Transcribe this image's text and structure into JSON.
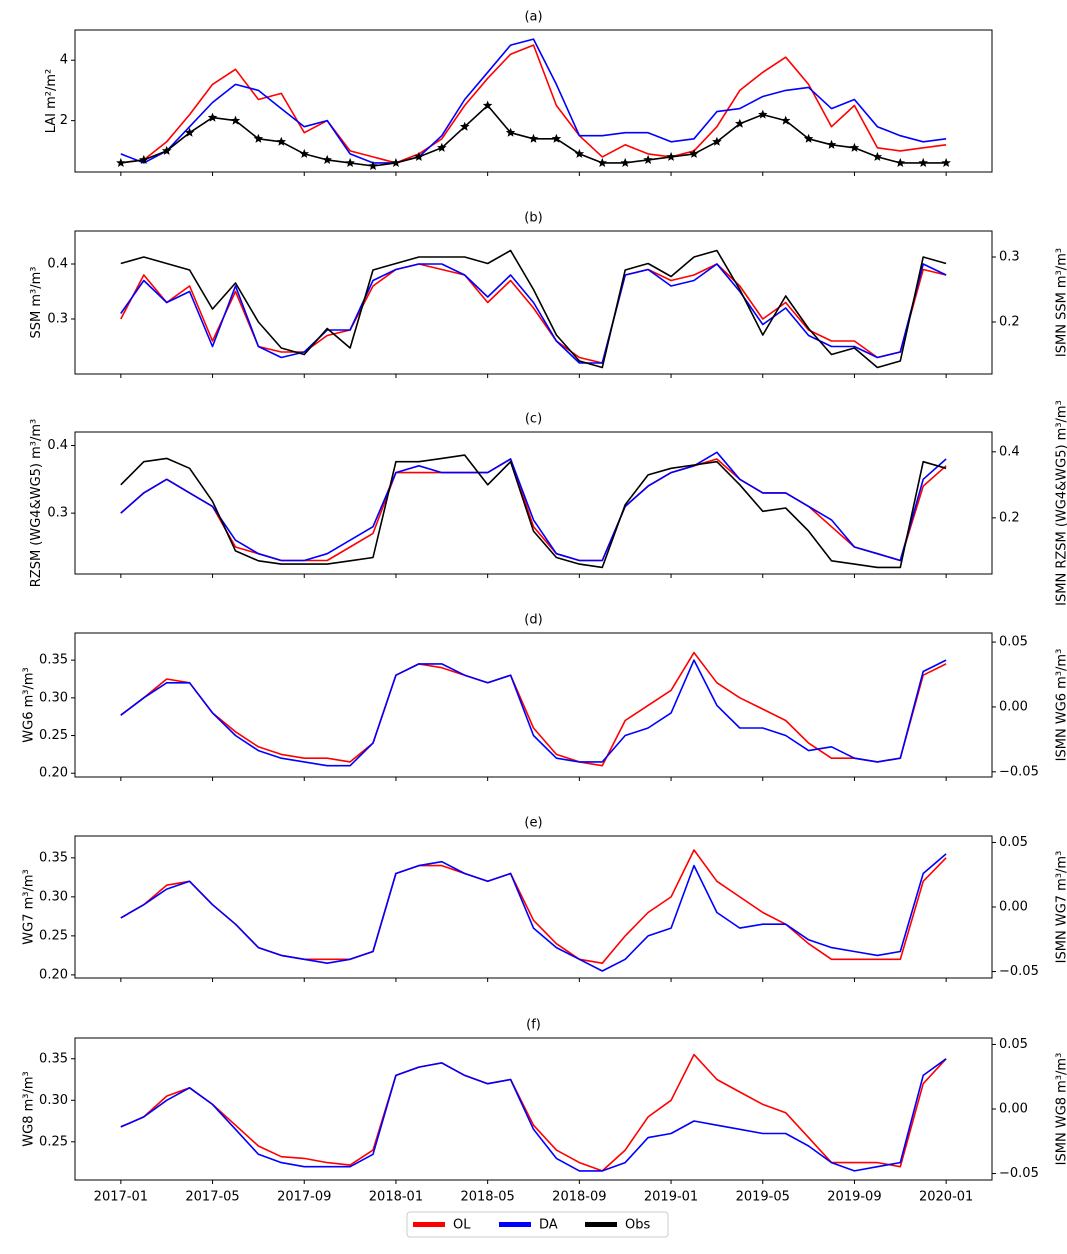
{
  "chart_data": [
    {
      "type": "line",
      "title": "(a)",
      "ylabel": "LAI m²/m²",
      "x": [
        "2017-01",
        "2017-02",
        "2017-03",
        "2017-04",
        "2017-05",
        "2017-06",
        "2017-07",
        "2017-08",
        "2017-09",
        "2017-10",
        "2017-11",
        "2017-12",
        "2018-01",
        "2018-02",
        "2018-03",
        "2018-04",
        "2018-05",
        "2018-06",
        "2018-07",
        "2018-08",
        "2018-09",
        "2018-10",
        "2018-11",
        "2018-12",
        "2019-01",
        "2019-02",
        "2019-03",
        "2019-04",
        "2019-05",
        "2019-06",
        "2019-07",
        "2019-08",
        "2019-09",
        "2019-10",
        "2019-11",
        "2019-12",
        "2020-01"
      ],
      "xlim": [
        "2016-11",
        "2020-03"
      ],
      "ylim": [
        0.3,
        5.0
      ],
      "yticks": [
        2,
        4
      ],
      "series": [
        {
          "name": "OL",
          "color": "#ff0000",
          "values": [
            0.6,
            0.7,
            1.3,
            2.2,
            3.2,
            3.7,
            2.7,
            2.9,
            1.6,
            2.0,
            1.0,
            0.8,
            0.6,
            0.9,
            1.4,
            2.5,
            3.4,
            4.2,
            4.5,
            2.5,
            1.5,
            0.8,
            1.2,
            0.9,
            0.8,
            1.0,
            1.8,
            3.0,
            3.6,
            4.1,
            3.2,
            1.8,
            2.5,
            1.1,
            1.0,
            1.1,
            1.2
          ]
        },
        {
          "name": "DA",
          "color": "#0000ff",
          "values": [
            0.9,
            0.6,
            1.0,
            1.8,
            2.6,
            3.2,
            3.0,
            2.4,
            1.8,
            2.0,
            0.9,
            0.6,
            0.6,
            0.8,
            1.5,
            2.7,
            3.6,
            4.5,
            4.7,
            3.2,
            1.5,
            1.5,
            1.6,
            1.6,
            1.3,
            1.4,
            2.3,
            2.4,
            2.8,
            3.0,
            3.1,
            2.4,
            2.7,
            1.8,
            1.5,
            1.3,
            1.4
          ]
        },
        {
          "name": "Obs",
          "color": "#000000",
          "marker": "star",
          "values": [
            0.6,
            0.7,
            1.0,
            1.6,
            2.1,
            2.0,
            1.4,
            1.3,
            0.9,
            0.7,
            0.6,
            0.5,
            0.6,
            0.8,
            1.1,
            1.8,
            2.5,
            1.6,
            1.4,
            1.4,
            0.9,
            0.6,
            0.6,
            0.7,
            0.8,
            0.9,
            1.3,
            1.9,
            2.2,
            2.0,
            1.4,
            1.2,
            1.1,
            0.8,
            0.6,
            0.6,
            0.6
          ]
        }
      ]
    },
    {
      "type": "line",
      "title": "(b)",
      "ylabel": "SSM m³/m³",
      "y2label": "ISMN SSM m³/m³",
      "x": [
        "2017-01",
        "2017-02",
        "2017-03",
        "2017-04",
        "2017-05",
        "2017-06",
        "2017-07",
        "2017-08",
        "2017-09",
        "2017-10",
        "2017-11",
        "2017-12",
        "2018-01",
        "2018-02",
        "2018-03",
        "2018-04",
        "2018-05",
        "2018-06",
        "2018-07",
        "2018-08",
        "2018-09",
        "2018-10",
        "2018-11",
        "2018-12",
        "2019-01",
        "2019-02",
        "2019-03",
        "2019-04",
        "2019-05",
        "2019-06",
        "2019-07",
        "2019-08",
        "2019-09",
        "2019-10",
        "2019-11",
        "2019-12",
        "2020-01"
      ],
      "xlim": [
        "2016-11",
        "2020-03"
      ],
      "ylim": [
        0.2,
        0.46
      ],
      "yticks": [
        0.3,
        0.4
      ],
      "y2lim": [
        0.12,
        0.34
      ],
      "y2ticks": [
        0.2,
        0.3
      ],
      "series": [
        {
          "name": "OL",
          "color": "#ff0000",
          "values": [
            0.3,
            0.38,
            0.33,
            0.36,
            0.26,
            0.35,
            0.25,
            0.24,
            0.24,
            0.27,
            0.28,
            0.36,
            0.39,
            0.4,
            0.39,
            0.38,
            0.33,
            0.37,
            0.32,
            0.26,
            0.23,
            0.22,
            0.38,
            0.39,
            0.37,
            0.38,
            0.4,
            0.36,
            0.3,
            0.33,
            0.28,
            0.26,
            0.26,
            0.23,
            0.24,
            0.39,
            0.38
          ]
        },
        {
          "name": "DA",
          "color": "#0000ff",
          "values": [
            0.31,
            0.37,
            0.33,
            0.35,
            0.25,
            0.36,
            0.25,
            0.23,
            0.24,
            0.28,
            0.28,
            0.37,
            0.39,
            0.4,
            0.4,
            0.38,
            0.34,
            0.38,
            0.33,
            0.26,
            0.22,
            0.22,
            0.38,
            0.39,
            0.36,
            0.37,
            0.4,
            0.35,
            0.29,
            0.32,
            0.27,
            0.25,
            0.25,
            0.23,
            0.24,
            0.4,
            0.38
          ]
        },
        {
          "name": "Obs",
          "color": "#000000",
          "axis": "y2",
          "values": [
            0.29,
            0.3,
            0.29,
            0.28,
            0.22,
            0.26,
            0.2,
            0.16,
            0.15,
            0.19,
            0.16,
            0.28,
            0.29,
            0.3,
            0.3,
            0.3,
            0.29,
            0.31,
            0.25,
            0.18,
            0.14,
            0.13,
            0.28,
            0.29,
            0.27,
            0.3,
            0.31,
            0.25,
            0.18,
            0.24,
            0.19,
            0.15,
            0.16,
            0.13,
            0.14,
            0.3,
            0.29
          ]
        }
      ]
    },
    {
      "type": "line",
      "title": "(c)",
      "ylabel": "RZSM (WG4&WG5) m³/m³",
      "y2label": "ISMN RZSM (WG4&WG5) m³/m³",
      "x": [
        "2017-01",
        "2017-02",
        "2017-03",
        "2017-04",
        "2017-05",
        "2017-06",
        "2017-07",
        "2017-08",
        "2017-09",
        "2017-10",
        "2017-11",
        "2017-12",
        "2018-01",
        "2018-02",
        "2018-03",
        "2018-04",
        "2018-05",
        "2018-06",
        "2018-07",
        "2018-08",
        "2018-09",
        "2018-10",
        "2018-11",
        "2018-12",
        "2019-01",
        "2019-02",
        "2019-03",
        "2019-04",
        "2019-05",
        "2019-06",
        "2019-07",
        "2019-08",
        "2019-09",
        "2019-10",
        "2019-11",
        "2019-12",
        "2020-01"
      ],
      "xlim": [
        "2016-11",
        "2020-03"
      ],
      "ylim": [
        0.21,
        0.42
      ],
      "yticks": [
        0.3,
        0.4
      ],
      "y2lim": [
        0.03,
        0.46
      ],
      "y2ticks": [
        0.2,
        0.4
      ],
      "series": [
        {
          "name": "OL",
          "color": "#ff0000",
          "values": [
            0.3,
            0.33,
            0.35,
            0.33,
            0.31,
            0.25,
            0.24,
            0.23,
            0.23,
            0.23,
            0.25,
            0.27,
            0.36,
            0.36,
            0.36,
            0.36,
            0.36,
            0.38,
            0.28,
            0.24,
            0.23,
            0.23,
            0.31,
            0.34,
            0.36,
            0.37,
            0.38,
            0.35,
            0.33,
            0.33,
            0.31,
            0.28,
            0.25,
            0.24,
            0.23,
            0.34,
            0.37
          ]
        },
        {
          "name": "DA",
          "color": "#0000ff",
          "values": [
            0.3,
            0.33,
            0.35,
            0.33,
            0.31,
            0.26,
            0.24,
            0.23,
            0.23,
            0.24,
            0.26,
            0.28,
            0.36,
            0.37,
            0.36,
            0.36,
            0.36,
            0.38,
            0.29,
            0.24,
            0.23,
            0.23,
            0.31,
            0.34,
            0.36,
            0.37,
            0.39,
            0.35,
            0.33,
            0.33,
            0.31,
            0.29,
            0.25,
            0.24,
            0.23,
            0.35,
            0.38
          ]
        },
        {
          "name": "Obs",
          "color": "#000000",
          "axis": "y2",
          "values": [
            0.3,
            0.37,
            0.38,
            0.35,
            0.25,
            0.1,
            0.07,
            0.06,
            0.06,
            0.06,
            0.07,
            0.08,
            0.37,
            0.37,
            0.38,
            0.39,
            0.3,
            0.37,
            0.16,
            0.08,
            0.06,
            0.05,
            0.24,
            0.33,
            0.35,
            0.36,
            0.37,
            0.3,
            0.22,
            0.23,
            0.16,
            0.07,
            0.06,
            0.05,
            0.05,
            0.37,
            0.35
          ]
        }
      ]
    },
    {
      "type": "line",
      "title": "(d)",
      "ylabel": "WG6 m³/m³",
      "y2label": "ISMN WG6 m³/m³",
      "x": [
        "2017-01",
        "2017-02",
        "2017-03",
        "2017-04",
        "2017-05",
        "2017-06",
        "2017-07",
        "2017-08",
        "2017-09",
        "2017-10",
        "2017-11",
        "2017-12",
        "2018-01",
        "2018-02",
        "2018-03",
        "2018-04",
        "2018-05",
        "2018-06",
        "2018-07",
        "2018-08",
        "2018-09",
        "2018-10",
        "2018-11",
        "2018-12",
        "2019-01",
        "2019-02",
        "2019-03",
        "2019-04",
        "2019-05",
        "2019-06",
        "2019-07",
        "2019-08",
        "2019-09",
        "2019-10",
        "2019-11",
        "2019-12",
        "2020-01"
      ],
      "xlim": [
        "2016-11",
        "2020-03"
      ],
      "ylim": [
        0.195,
        0.386
      ],
      "yticks": [
        {
          "value": 0.2,
          "label": "0.20"
        },
        0.25,
        {
          "value": 0.3,
          "label": "0.30"
        },
        0.35
      ],
      "y2lim": [
        -0.054,
        0.057
      ],
      "y2ticks": [
        {
          "value": -0.05,
          "label": "−0.05"
        },
        {
          "value": 0,
          "label": "0.00"
        },
        0.05
      ],
      "series": [
        {
          "name": "OL",
          "color": "#ff0000",
          "values": [
            0.277,
            0.3,
            0.325,
            0.32,
            0.28,
            0.255,
            0.235,
            0.225,
            0.22,
            0.22,
            0.215,
            0.24,
            0.33,
            0.345,
            0.34,
            0.33,
            0.32,
            0.33,
            0.26,
            0.225,
            0.215,
            0.21,
            0.27,
            0.29,
            0.31,
            0.36,
            0.32,
            0.3,
            0.285,
            0.27,
            0.24,
            0.22,
            0.22,
            0.215,
            0.22,
            0.33,
            0.345
          ]
        },
        {
          "name": "DA",
          "color": "#0000ff",
          "values": [
            0.277,
            0.3,
            0.32,
            0.32,
            0.28,
            0.25,
            0.23,
            0.22,
            0.215,
            0.21,
            0.21,
            0.24,
            0.33,
            0.345,
            0.345,
            0.33,
            0.32,
            0.33,
            0.25,
            0.22,
            0.215,
            0.215,
            0.25,
            0.26,
            0.28,
            0.35,
            0.29,
            0.26,
            0.26,
            0.25,
            0.23,
            0.235,
            0.22,
            0.215,
            0.22,
            0.335,
            0.35
          ]
        }
      ]
    },
    {
      "type": "line",
      "title": "(e)",
      "ylabel": "WG7 m³/m³",
      "y2label": "ISMN WG7 m³/m³",
      "x": [
        "2017-01",
        "2017-02",
        "2017-03",
        "2017-04",
        "2017-05",
        "2017-06",
        "2017-07",
        "2017-08",
        "2017-09",
        "2017-10",
        "2017-11",
        "2017-12",
        "2018-01",
        "2018-02",
        "2018-03",
        "2018-04",
        "2018-05",
        "2018-06",
        "2018-07",
        "2018-08",
        "2018-09",
        "2018-10",
        "2018-11",
        "2018-12",
        "2019-01",
        "2019-02",
        "2019-03",
        "2019-04",
        "2019-05",
        "2019-06",
        "2019-07",
        "2019-08",
        "2019-09",
        "2019-10",
        "2019-11",
        "2019-12",
        "2020-01"
      ],
      "xlim": [
        "2016-11",
        "2020-03"
      ],
      "ylim": [
        0.196,
        0.378
      ],
      "yticks": [
        {
          "value": 0.2,
          "label": "0.20"
        },
        0.25,
        {
          "value": 0.3,
          "label": "0.30"
        },
        0.35
      ],
      "y2lim": [
        -0.055,
        0.055
      ],
      "y2ticks": [
        {
          "value": -0.05,
          "label": "−0.05"
        },
        {
          "value": 0,
          "label": "0.00"
        },
        0.05
      ],
      "series": [
        {
          "name": "OL",
          "color": "#ff0000",
          "values": [
            0.273,
            0.29,
            0.315,
            0.32,
            0.29,
            0.265,
            0.235,
            0.225,
            0.22,
            0.22,
            0.22,
            0.23,
            0.33,
            0.34,
            0.34,
            0.33,
            0.32,
            0.33,
            0.27,
            0.24,
            0.22,
            0.215,
            0.25,
            0.28,
            0.3,
            0.36,
            0.32,
            0.3,
            0.28,
            0.265,
            0.24,
            0.22,
            0.22,
            0.22,
            0.22,
            0.32,
            0.35
          ]
        },
        {
          "name": "DA",
          "color": "#0000ff",
          "values": [
            0.273,
            0.29,
            0.31,
            0.32,
            0.29,
            0.265,
            0.235,
            0.225,
            0.22,
            0.215,
            0.22,
            0.23,
            0.33,
            0.34,
            0.345,
            0.33,
            0.32,
            0.33,
            0.26,
            0.235,
            0.22,
            0.205,
            0.22,
            0.25,
            0.26,
            0.34,
            0.28,
            0.26,
            0.265,
            0.265,
            0.245,
            0.235,
            0.23,
            0.225,
            0.23,
            0.33,
            0.355
          ]
        }
      ]
    },
    {
      "type": "line",
      "title": "(f)",
      "ylabel": "WG8 m³/m³",
      "y2label": "ISMN WG8 m³/m³",
      "x": [
        "2017-01",
        "2017-02",
        "2017-03",
        "2017-04",
        "2017-05",
        "2017-06",
        "2017-07",
        "2017-08",
        "2017-09",
        "2017-10",
        "2017-11",
        "2017-12",
        "2018-01",
        "2018-02",
        "2018-03",
        "2018-04",
        "2018-05",
        "2018-06",
        "2018-07",
        "2018-08",
        "2018-09",
        "2018-10",
        "2018-11",
        "2018-12",
        "2019-01",
        "2019-02",
        "2019-03",
        "2019-04",
        "2019-05",
        "2019-06",
        "2019-07",
        "2019-08",
        "2019-09",
        "2019-10",
        "2019-11",
        "2019-12",
        "2020-01"
      ],
      "xlim": [
        "2016-11",
        "2020-03"
      ],
      "ylim": [
        0.204,
        0.375
      ],
      "yticks": [
        0.25,
        {
          "value": 0.3,
          "label": "0.30"
        },
        0.35
      ],
      "y2lim": [
        -0.055,
        0.055
      ],
      "y2ticks": [
        {
          "value": -0.05,
          "label": "−0.05"
        },
        {
          "value": 0,
          "label": "0.00"
        },
        0.05
      ],
      "xticks": [
        "2017-01",
        "2017-05",
        "2017-09",
        "2018-01",
        "2018-05",
        "2018-09",
        "2019-01",
        "2019-05",
        "2019-09",
        "2020-01"
      ],
      "series": [
        {
          "name": "OL",
          "color": "#ff0000",
          "values": [
            0.268,
            0.28,
            0.305,
            0.315,
            0.295,
            0.27,
            0.245,
            0.232,
            0.23,
            0.225,
            0.222,
            0.24,
            0.33,
            0.34,
            0.345,
            0.33,
            0.32,
            0.325,
            0.27,
            0.24,
            0.225,
            0.215,
            0.24,
            0.28,
            0.3,
            0.355,
            0.325,
            0.31,
            0.295,
            0.285,
            0.255,
            0.225,
            0.225,
            0.225,
            0.22,
            0.32,
            0.35
          ]
        },
        {
          "name": "DA",
          "color": "#0000ff",
          "values": [
            0.268,
            0.28,
            0.3,
            0.315,
            0.295,
            0.265,
            0.235,
            0.225,
            0.22,
            0.22,
            0.22,
            0.235,
            0.33,
            0.34,
            0.345,
            0.33,
            0.32,
            0.325,
            0.265,
            0.23,
            0.215,
            0.215,
            0.225,
            0.255,
            0.26,
            0.275,
            0.27,
            0.265,
            0.26,
            0.26,
            0.245,
            0.225,
            0.215,
            0.22,
            0.225,
            0.33,
            0.35
          ]
        }
      ]
    }
  ]
}
